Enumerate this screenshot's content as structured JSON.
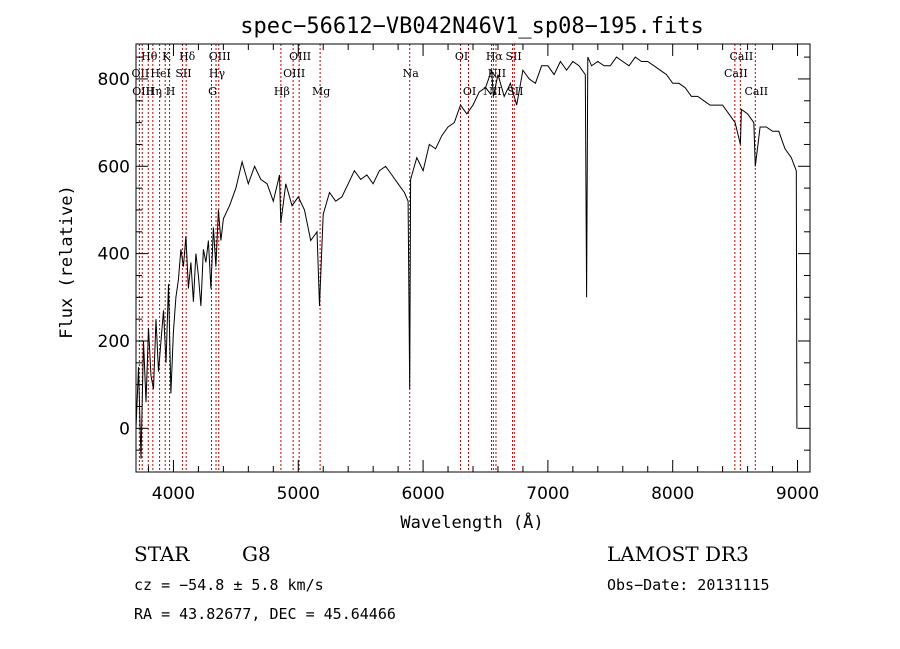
{
  "chart_data": {
    "type": "line",
    "title": "spec−56612−VB042N46V1_sp08−195.fits",
    "xlabel": "Wavelength (Å)",
    "ylabel": "Flux (relative)",
    "xlim": [
      3700,
      9100
    ],
    "ylim": [
      -100,
      880
    ],
    "xticks": [
      4000,
      5000,
      6000,
      7000,
      8000,
      9000
    ],
    "yticks": [
      0,
      200,
      400,
      600,
      800
    ],
    "spectrum": {
      "x": [
        3700,
        3720,
        3740,
        3760,
        3780,
        3800,
        3820,
        3840,
        3860,
        3880,
        3900,
        3920,
        3940,
        3960,
        3980,
        4000,
        4020,
        4040,
        4060,
        4080,
        4100,
        4120,
        4140,
        4160,
        4180,
        4200,
        4220,
        4240,
        4260,
        4280,
        4300,
        4320,
        4340,
        4360,
        4380,
        4400,
        4450,
        4500,
        4550,
        4600,
        4650,
        4700,
        4750,
        4800,
        4850,
        4860,
        4900,
        4950,
        5000,
        5050,
        5100,
        5150,
        5170,
        5200,
        5250,
        5300,
        5350,
        5400,
        5450,
        5500,
        5550,
        5600,
        5650,
        5700,
        5750,
        5800,
        5850,
        5880,
        5893,
        5900,
        5950,
        6000,
        6050,
        6100,
        6150,
        6200,
        6250,
        6300,
        6350,
        6400,
        6450,
        6500,
        6550,
        6563,
        6600,
        6650,
        6700,
        6750,
        6800,
        6850,
        6900,
        6950,
        7000,
        7050,
        7100,
        7150,
        7200,
        7250,
        7300,
        7310,
        7320,
        7350,
        7400,
        7450,
        7500,
        7550,
        7600,
        7650,
        7700,
        7750,
        7800,
        7850,
        7900,
        7950,
        8000,
        8050,
        8100,
        8150,
        8200,
        8250,
        8300,
        8350,
        8400,
        8450,
        8500,
        8542,
        8550,
        8600,
        8650,
        8662,
        8700,
        8750,
        8800,
        8850,
        8900,
        8950,
        8990,
        8995,
        9000
      ],
      "y": [
        0,
        140,
        -70,
        200,
        60,
        230,
        120,
        90,
        250,
        130,
        200,
        270,
        150,
        330,
        80,
        220,
        300,
        340,
        410,
        370,
        440,
        320,
        380,
        290,
        400,
        350,
        280,
        410,
        380,
        430,
        320,
        460,
        370,
        500,
        430,
        480,
        510,
        550,
        610,
        560,
        600,
        570,
        560,
        520,
        580,
        470,
        560,
        510,
        530,
        500,
        430,
        450,
        280,
        490,
        540,
        520,
        530,
        560,
        590,
        570,
        580,
        560,
        590,
        600,
        580,
        560,
        540,
        520,
        90,
        570,
        620,
        590,
        650,
        640,
        670,
        690,
        700,
        740,
        720,
        740,
        770,
        780,
        820,
        760,
        810,
        760,
        790,
        740,
        820,
        800,
        790,
        830,
        830,
        810,
        840,
        820,
        840,
        830,
        810,
        300,
        850,
        830,
        840,
        830,
        830,
        850,
        840,
        830,
        850,
        840,
        840,
        830,
        820,
        810,
        790,
        790,
        780,
        760,
        760,
        750,
        740,
        740,
        740,
        720,
        700,
        650,
        730,
        720,
        700,
        600,
        690,
        690,
        680,
        680,
        640,
        620,
        590,
        0,
        0
      ]
    },
    "spectral_lines": [
      {
        "label": "Hθ",
        "wavelength": 3798,
        "tier": 1
      },
      {
        "label": "OII",
        "wavelength": 3727,
        "tier": 2
      },
      {
        "label": "OIII",
        "wavelength": 3750,
        "tier": 3
      },
      {
        "label": "Hη",
        "wavelength": 3835,
        "tier": 3
      },
      {
        "label": "HeI",
        "wavelength": 3889,
        "tier": 2
      },
      {
        "label": "K",
        "wavelength": 3934,
        "tier": 1
      },
      {
        "label": "H",
        "wavelength": 3969,
        "tier": 3
      },
      {
        "label": "SII",
        "wavelength": 4072,
        "tier": 2
      },
      {
        "label": "Hδ",
        "wavelength": 4102,
        "tier": 1
      },
      {
        "label": "OIII",
        "wavelength": 4363,
        "tier": 1
      },
      {
        "label": "Hγ",
        "wavelength": 4341,
        "tier": 2
      },
      {
        "label": "G",
        "wavelength": 4305,
        "tier": 3
      },
      {
        "label": "Hβ",
        "wavelength": 4861,
        "tier": 3
      },
      {
        "label": "OIII",
        "wavelength": 5007,
        "tier": 1
      },
      {
        "label": "OIII",
        "wavelength": 4959,
        "tier": 2
      },
      {
        "label": "Mg",
        "wavelength": 5175,
        "tier": 3
      },
      {
        "label": "Na",
        "wavelength": 5893,
        "tier": 2
      },
      {
        "label": "OI",
        "wavelength": 6300,
        "tier": 1
      },
      {
        "label": "OI",
        "wavelength": 6364,
        "tier": 3
      },
      {
        "label": "Hα",
        "wavelength": 6563,
        "tier": 1
      },
      {
        "label": "SII",
        "wavelength": 6717,
        "tier": 1
      },
      {
        "label": "NII",
        "wavelength": 6584,
        "tier": 2
      },
      {
        "label": "NII",
        "wavelength": 6548,
        "tier": 3
      },
      {
        "label": "SII",
        "wavelength": 6731,
        "tier": 3
      },
      {
        "label": "CaII",
        "wavelength": 8542,
        "tier": 1
      },
      {
        "label": "CaII",
        "wavelength": 8498,
        "tier": 2
      },
      {
        "label": "CaII",
        "wavelength": 8662,
        "tier": 3
      }
    ],
    "colors": {
      "spectrum": "#000000",
      "lines": "#c00000",
      "frame": "#000000"
    }
  },
  "footer": {
    "object_class": "STAR",
    "subclass": "G8",
    "survey": "LAMOST DR3",
    "velocity": "cz = −54.8 ± 5.8 km/s",
    "obs_date": "Obs−Date: 20131115",
    "coordinates": "RA =  43.82677, DEC =  45.64466"
  }
}
